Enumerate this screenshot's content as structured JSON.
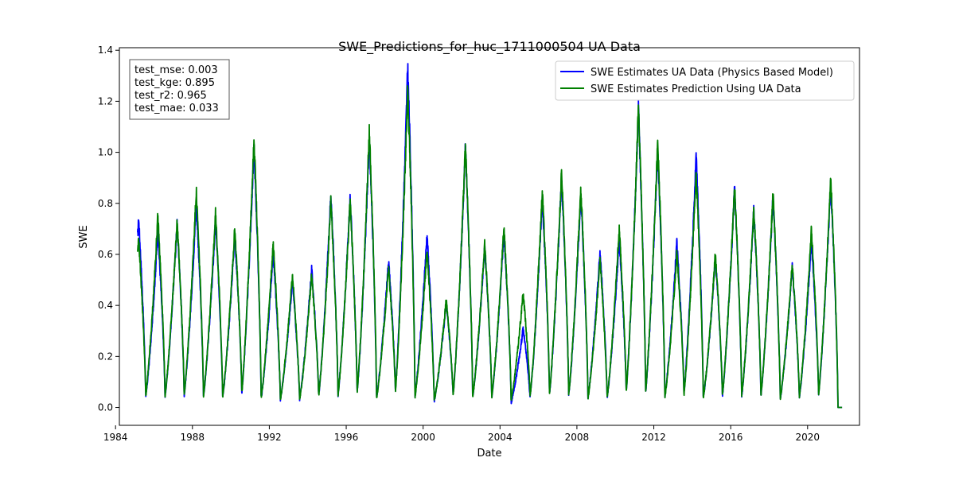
{
  "chart_data": {
    "type": "line",
    "title": "SWE_Predictions_for_huc_1711000504 UA Data",
    "xlabel": "Date",
    "ylabel": "SWE",
    "xlim": [
      1984.2,
      2022.7
    ],
    "ylim": [
      -0.07,
      1.41
    ],
    "xticks": [
      1984,
      1988,
      1992,
      1996,
      2000,
      2004,
      2008,
      2012,
      2016,
      2020
    ],
    "yticks": [
      0.0,
      0.2,
      0.4,
      0.6,
      0.8,
      1.0,
      1.2,
      1.4
    ],
    "grid": false,
    "legend_position": "top-right",
    "metrics": [
      {
        "label": "test_mse: 0.003"
      },
      {
        "label": "test_kge: 0.895"
      },
      {
        "label": "test_r2: 0.965"
      },
      {
        "label": "test_mae: 0.033"
      }
    ],
    "series": [
      {
        "name": "SWE Estimates UA Data (Physics Based Model)",
        "color": "#0000ff",
        "peaks": [
          {
            "year": 1985.2,
            "value": 0.74
          },
          {
            "year": 1986.2,
            "value": 0.69
          },
          {
            "year": 1987.2,
            "value": 0.72
          },
          {
            "year": 1988.2,
            "value": 0.8
          },
          {
            "year": 1989.2,
            "value": 0.73
          },
          {
            "year": 1990.2,
            "value": 0.68
          },
          {
            "year": 1991.2,
            "value": 1.02
          },
          {
            "year": 1992.2,
            "value": 0.6
          },
          {
            "year": 1993.2,
            "value": 0.5
          },
          {
            "year": 1994.2,
            "value": 0.54
          },
          {
            "year": 1995.2,
            "value": 0.84
          },
          {
            "year": 1996.2,
            "value": 0.82
          },
          {
            "year": 1997.2,
            "value": 1.05
          },
          {
            "year": 1998.2,
            "value": 0.58
          },
          {
            "year": 1999.2,
            "value": 1.34
          },
          {
            "year": 2000.2,
            "value": 0.68
          },
          {
            "year": 2001.2,
            "value": 0.41
          },
          {
            "year": 2002.2,
            "value": 1.02
          },
          {
            "year": 2003.2,
            "value": 0.63
          },
          {
            "year": 2004.2,
            "value": 0.69
          },
          {
            "year": 2005.2,
            "value": 0.31
          },
          {
            "year": 2006.2,
            "value": 0.82
          },
          {
            "year": 2007.2,
            "value": 0.9
          },
          {
            "year": 2008.2,
            "value": 0.83
          },
          {
            "year": 2009.2,
            "value": 0.61
          },
          {
            "year": 2010.2,
            "value": 0.66
          },
          {
            "year": 2011.2,
            "value": 1.17
          },
          {
            "year": 2012.2,
            "value": 1.01
          },
          {
            "year": 2013.2,
            "value": 0.65
          },
          {
            "year": 2014.2,
            "value": 0.99
          },
          {
            "year": 2015.2,
            "value": 0.59
          },
          {
            "year": 2016.2,
            "value": 0.86
          },
          {
            "year": 2017.2,
            "value": 0.77
          },
          {
            "year": 2018.2,
            "value": 0.83
          },
          {
            "year": 2019.2,
            "value": 0.55
          },
          {
            "year": 2020.2,
            "value": 0.66
          },
          {
            "year": 2021.2,
            "value": 0.88
          }
        ]
      },
      {
        "name": "SWE Estimates Prediction Using UA Data",
        "color": "#008000",
        "peaks": [
          {
            "year": 1985.2,
            "value": 0.66
          },
          {
            "year": 1986.2,
            "value": 0.75
          },
          {
            "year": 1987.2,
            "value": 0.73
          },
          {
            "year": 1988.2,
            "value": 0.85
          },
          {
            "year": 1989.2,
            "value": 0.76
          },
          {
            "year": 1990.2,
            "value": 0.7
          },
          {
            "year": 1991.2,
            "value": 1.06
          },
          {
            "year": 1992.2,
            "value": 0.64
          },
          {
            "year": 1993.2,
            "value": 0.52
          },
          {
            "year": 1994.2,
            "value": 0.52
          },
          {
            "year": 1995.2,
            "value": 0.81
          },
          {
            "year": 1996.2,
            "value": 0.81
          },
          {
            "year": 1997.2,
            "value": 1.09
          },
          {
            "year": 1998.2,
            "value": 0.55
          },
          {
            "year": 1999.2,
            "value": 1.25
          },
          {
            "year": 2000.2,
            "value": 0.62
          },
          {
            "year": 2001.2,
            "value": 0.42
          },
          {
            "year": 2002.2,
            "value": 1.03
          },
          {
            "year": 2003.2,
            "value": 0.64
          },
          {
            "year": 2004.2,
            "value": 0.71
          },
          {
            "year": 2005.2,
            "value": 0.45
          },
          {
            "year": 2006.2,
            "value": 0.85
          },
          {
            "year": 2007.2,
            "value": 0.92
          },
          {
            "year": 2008.2,
            "value": 0.86
          },
          {
            "year": 2009.2,
            "value": 0.58
          },
          {
            "year": 2010.2,
            "value": 0.7
          },
          {
            "year": 2011.2,
            "value": 1.18
          },
          {
            "year": 2012.2,
            "value": 1.04
          },
          {
            "year": 2013.2,
            "value": 0.61
          },
          {
            "year": 2014.2,
            "value": 0.92
          },
          {
            "year": 2015.2,
            "value": 0.6
          },
          {
            "year": 2016.2,
            "value": 0.87
          },
          {
            "year": 2017.2,
            "value": 0.78
          },
          {
            "year": 2018.2,
            "value": 0.84
          },
          {
            "year": 2019.2,
            "value": 0.56
          },
          {
            "year": 2020.2,
            "value": 0.7
          },
          {
            "year": 2021.2,
            "value": 0.9
          }
        ]
      }
    ],
    "series_end_year": 2021.8
  }
}
